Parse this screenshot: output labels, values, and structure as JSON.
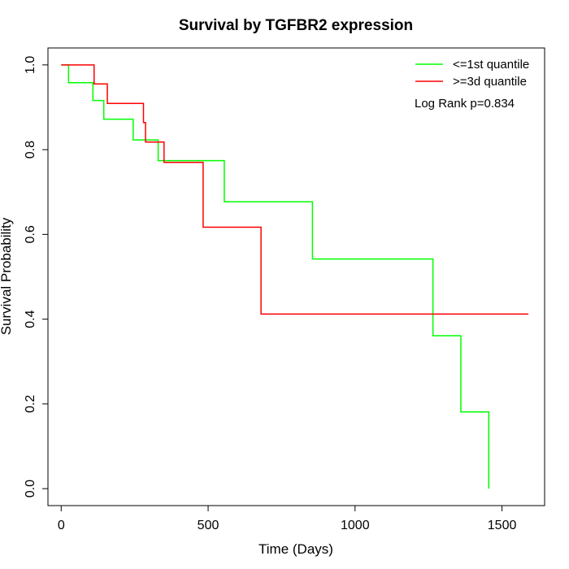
{
  "chart_data": {
    "type": "line",
    "title": "Survival by TGFBR2 expression",
    "xlabel": "Time (Days)",
    "ylabel": "Survival Probability",
    "xlim": [
      -45,
      1645
    ],
    "ylim": [
      -0.04,
      1.04
    ],
    "xticks": [
      0,
      500,
      1000,
      1500
    ],
    "yticks": [
      0.0,
      0.2,
      0.4,
      0.6,
      0.8,
      1.0
    ],
    "xtick_labels": [
      "0",
      "500",
      "1000",
      "1500"
    ],
    "ytick_labels": [
      "0.0",
      "0.2",
      "0.4",
      "0.6",
      "0.8",
      "1.0"
    ],
    "grid": false,
    "legend_position": "top-right",
    "annotation": "Log Rank p=0.834",
    "series": [
      {
        "name": "<=1st quantile",
        "color": "#00ff00",
        "step": true,
        "x": [
          0,
          25,
          108,
          145,
          245,
          330,
          555,
          855,
          1265,
          1360,
          1455,
          1455
        ],
        "y": [
          1.0,
          0.958,
          0.916,
          0.872,
          0.823,
          0.774,
          0.677,
          0.542,
          0.361,
          0.181,
          0.181,
          0.0
        ]
      },
      {
        "name": ">=3d quantile",
        "color": "#ff0000",
        "step": true,
        "x": [
          0,
          112,
          157,
          280,
          287,
          350,
          483,
          680,
          1590
        ],
        "y": [
          1.0,
          0.955,
          0.909,
          0.864,
          0.818,
          0.77,
          0.617,
          0.412,
          0.412
        ]
      }
    ]
  }
}
